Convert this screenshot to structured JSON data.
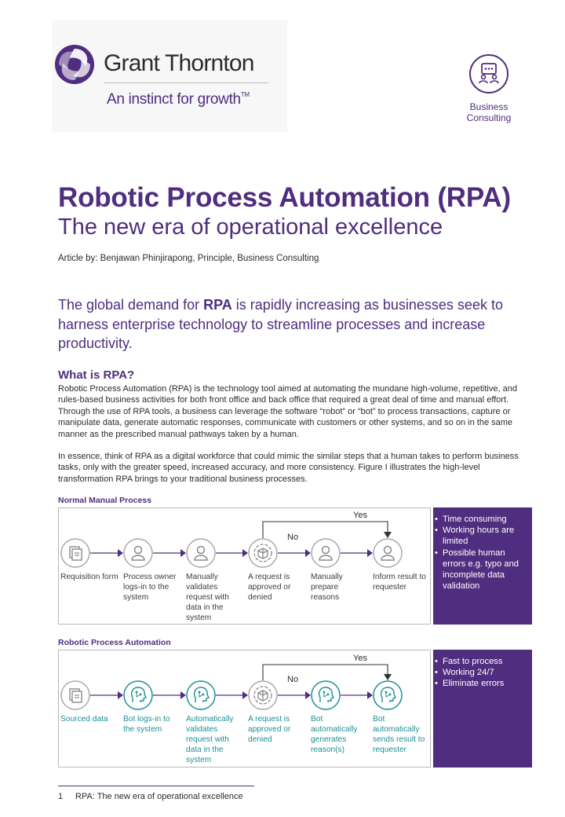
{
  "brand": {
    "name": "Grant Thornton",
    "tagline": "An instinct for growth",
    "tagline_mark": "TM",
    "primary_color": "#4f2d7f",
    "teal_color": "#1e8f96"
  },
  "service": {
    "icon": "business-consulting-icon",
    "label": "Business Consulting"
  },
  "header": {
    "title": "Robotic Process Automation (RPA)",
    "subtitle": "The new era of operational excellence",
    "byline": "Article by: Benjawan Phinjirapong, Principle, Business Consulting"
  },
  "lead": {
    "before": "The global demand for ",
    "emphasis": "RPA",
    "after": " is rapidly increasing as businesses seek to harness enterprise technology to streamline processes and increase productivity."
  },
  "what_is": {
    "heading": "What is RPA?",
    "paragraph1": "Robotic Process Automation (RPA) is the technology tool aimed at automating the mundane high-volume, repetitive, and rules-based business activities for both front office and back office that required a great deal of time and manual effort. Through the use of RPA tools, a business can leverage the software “robot” or “bot” to process transactions, capture or manipulate data, generate automatic responses, communicate with customers or other systems, and so on in the same manner as the prescribed  manual pathways taken by a human.",
    "paragraph2": "In essence,  think of RPA as a digital workforce that could mimic the similar steps that a human takes to perform business tasks,  only with the greater speed, increased accuracy, and more consistency. Figure I illustrates the high-level transformation RPA brings to your traditional business processes."
  },
  "manual": {
    "label": "Normal Manual Process",
    "yes": "Yes",
    "no": "No",
    "steps": [
      {
        "icon": "document-stack-icon",
        "caption": "Requisition form"
      },
      {
        "icon": "person-icon",
        "caption": "Process owner logs-in to the system"
      },
      {
        "icon": "person-icon",
        "caption": "Manually validates request with data in the system"
      },
      {
        "icon": "decision-cube-icon",
        "caption": "A request is approved or denied"
      },
      {
        "icon": "person-icon",
        "caption": "Manually prepare reasons"
      },
      {
        "icon": "person-icon",
        "caption": "Inform result to requester"
      }
    ],
    "panel": [
      "Time consuming",
      "Working hours are limited",
      "Possible human errors e.g. typo and incomplete data validation"
    ]
  },
  "rpa": {
    "label": "Robotic Process Automation",
    "yes": "Yes",
    "no": "No",
    "steps": [
      {
        "icon": "document-stack-icon",
        "caption": "Sourced data"
      },
      {
        "icon": "robot-head-icon",
        "caption": "Bot logs-in to the system"
      },
      {
        "icon": "robot-head-icon",
        "caption": "Automatically validates request with data in the system"
      },
      {
        "icon": "decision-cube-icon",
        "caption": "A request is approved or denied"
      },
      {
        "icon": "robot-head-icon",
        "caption": "Bot automatically generates reason(s)"
      },
      {
        "icon": "robot-head-icon",
        "caption": "Bot automatically sends result to requester"
      }
    ],
    "panel": [
      "Fast to process",
      "Working 24/7",
      "Eliminate errors"
    ]
  },
  "footer": {
    "page_number": "1",
    "text": "RPA: The new era of operational excellence"
  }
}
